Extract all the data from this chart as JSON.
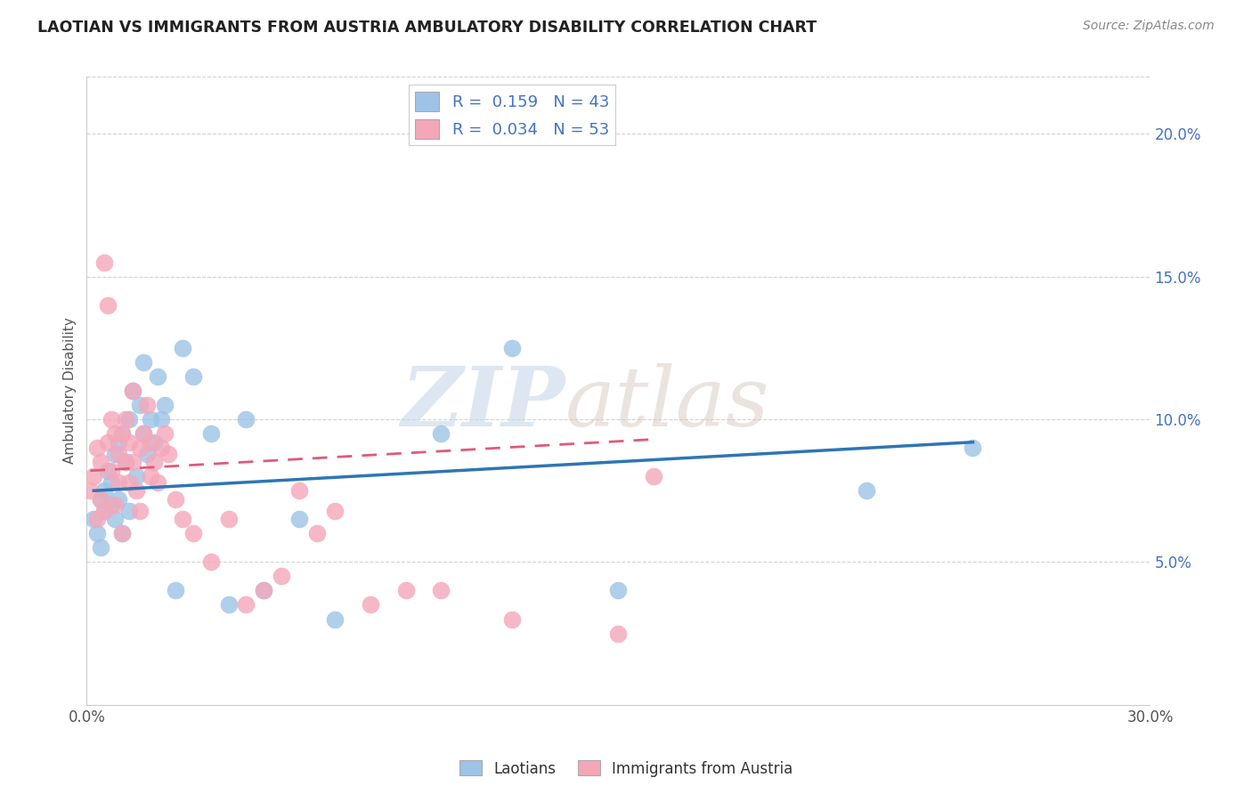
{
  "title": "LAOTIAN VS IMMIGRANTS FROM AUSTRIA AMBULATORY DISABILITY CORRELATION CHART",
  "source_text": "Source: ZipAtlas.com",
  "ylabel": "Ambulatory Disability",
  "xlim": [
    0.0,
    0.3
  ],
  "ylim": [
    0.0,
    0.22
  ],
  "yticks_right": [
    0.05,
    0.1,
    0.15,
    0.2
  ],
  "ytick_right_labels": [
    "5.0%",
    "10.0%",
    "15.0%",
    "20.0%"
  ],
  "legend_R1": "R =  0.159",
  "legend_N1": "N = 43",
  "legend_R2": "R =  0.034",
  "legend_N2": "N = 53",
  "series1_color": "#9dc3e6",
  "series2_color": "#f4a7b9",
  "trendline1_color": "#2e75b6",
  "trendline2_color": "#e05a7a",
  "watermark_zip": "ZIP",
  "watermark_atlas": "atlas",
  "background_color": "#ffffff",
  "grid_color": "#d3d3d3",
  "label1": "Laotians",
  "label2": "Immigrants from Austria",
  "laotian_x": [
    0.002,
    0.003,
    0.004,
    0.004,
    0.005,
    0.005,
    0.006,
    0.007,
    0.007,
    0.008,
    0.008,
    0.009,
    0.009,
    0.01,
    0.01,
    0.011,
    0.012,
    0.012,
    0.013,
    0.014,
    0.015,
    0.016,
    0.016,
    0.017,
    0.018,
    0.019,
    0.02,
    0.021,
    0.022,
    0.025,
    0.027,
    0.03,
    0.035,
    0.04,
    0.045,
    0.05,
    0.06,
    0.07,
    0.1,
    0.12,
    0.15,
    0.22,
    0.25
  ],
  "laotian_y": [
    0.065,
    0.06,
    0.072,
    0.055,
    0.075,
    0.068,
    0.082,
    0.07,
    0.078,
    0.065,
    0.088,
    0.072,
    0.092,
    0.06,
    0.095,
    0.085,
    0.1,
    0.068,
    0.11,
    0.08,
    0.105,
    0.095,
    0.12,
    0.088,
    0.1,
    0.092,
    0.115,
    0.1,
    0.105,
    0.04,
    0.125,
    0.115,
    0.095,
    0.035,
    0.1,
    0.04,
    0.065,
    0.03,
    0.095,
    0.125,
    0.04,
    0.075,
    0.09
  ],
  "austria_x": [
    0.001,
    0.002,
    0.003,
    0.003,
    0.004,
    0.004,
    0.005,
    0.005,
    0.006,
    0.006,
    0.007,
    0.007,
    0.008,
    0.008,
    0.009,
    0.009,
    0.01,
    0.01,
    0.011,
    0.011,
    0.012,
    0.012,
    0.013,
    0.013,
    0.014,
    0.015,
    0.015,
    0.016,
    0.017,
    0.018,
    0.018,
    0.019,
    0.02,
    0.021,
    0.022,
    0.023,
    0.025,
    0.027,
    0.03,
    0.035,
    0.04,
    0.045,
    0.05,
    0.055,
    0.06,
    0.065,
    0.07,
    0.08,
    0.09,
    0.1,
    0.12,
    0.15,
    0.16
  ],
  "austria_y": [
    0.075,
    0.08,
    0.065,
    0.09,
    0.072,
    0.085,
    0.155,
    0.068,
    0.14,
    0.092,
    0.082,
    0.1,
    0.07,
    0.095,
    0.078,
    0.088,
    0.06,
    0.095,
    0.085,
    0.1,
    0.092,
    0.078,
    0.11,
    0.085,
    0.075,
    0.09,
    0.068,
    0.095,
    0.105,
    0.08,
    0.092,
    0.085,
    0.078,
    0.09,
    0.095,
    0.088,
    0.072,
    0.065,
    0.06,
    0.05,
    0.065,
    0.035,
    0.04,
    0.045,
    0.075,
    0.06,
    0.068,
    0.035,
    0.04,
    0.04,
    0.03,
    0.025,
    0.08
  ],
  "trendline1_x_start": 0.002,
  "trendline1_x_end": 0.25,
  "trendline1_y_start": 0.075,
  "trendline1_y_end": 0.092,
  "trendline2_x_start": 0.001,
  "trendline2_x_end": 0.16,
  "trendline2_y_start": 0.082,
  "trendline2_y_end": 0.093
}
